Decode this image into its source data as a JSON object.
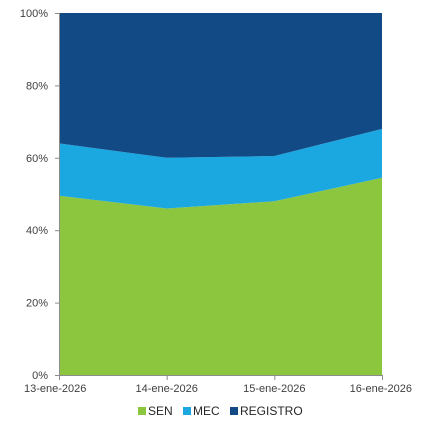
{
  "chart_data": {
    "type": "area",
    "stacked": true,
    "normalized_percent": true,
    "categories": [
      "13-ene-2026",
      "14-ene-2026",
      "15-ene-2026",
      "16-ene-2026"
    ],
    "series": [
      {
        "name": "SEN",
        "values": [
          49.5,
          46,
          48,
          54.5
        ],
        "color": "#8CC63F"
      },
      {
        "name": "MEC",
        "values": [
          14.5,
          14,
          12.5,
          13.5
        ],
        "color": "#1BA8E0"
      },
      {
        "name": "REGISTRO",
        "values": [
          36,
          40,
          39.5,
          32
        ],
        "color": "#124A86"
      }
    ],
    "y_ticks": [
      "0%",
      "20%",
      "40%",
      "60%",
      "80%",
      "100%"
    ],
    "ylim": [
      0,
      100
    ],
    "grid": false,
    "legend_position": "bottom"
  }
}
